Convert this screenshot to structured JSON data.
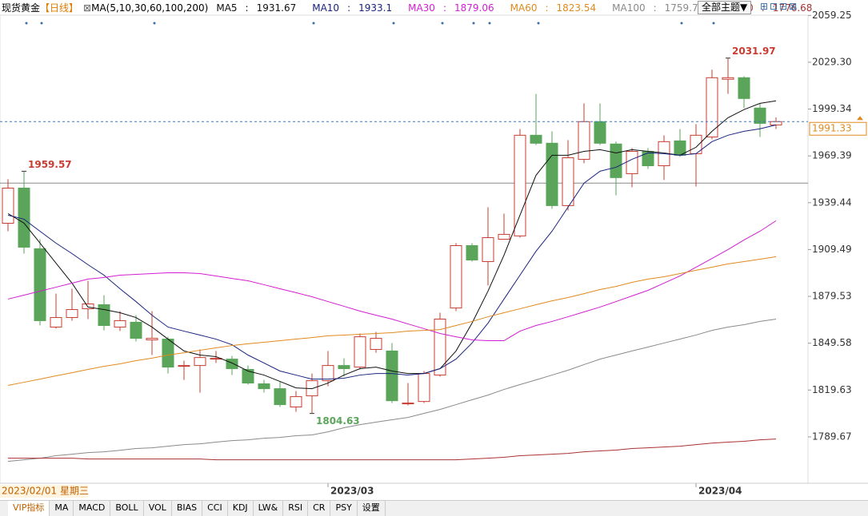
{
  "header": {
    "instrument": "现货黄金",
    "period": "【日线】",
    "indicator": "MA(5,10,30,60,100,200)",
    "legend_separator": ":",
    "theme_button": "全部主题▼"
  },
  "chart_data": {
    "type": "candlestick",
    "categories": [
      null,
      null,
      null,
      null,
      null,
      null,
      null,
      null,
      null,
      null,
      null,
      null,
      null,
      null,
      null,
      null,
      null,
      null,
      null,
      null,
      "2023/03",
      null,
      null,
      null,
      null,
      null,
      null,
      null,
      null,
      null,
      null,
      null,
      null,
      null,
      null,
      null,
      null,
      null,
      null,
      null,
      null,
      null,
      null,
      "2023/04",
      null,
      null,
      null,
      null,
      null
    ],
    "cursor_date": "2023/02/01 星期三",
    "open": [
      1926.3,
      1948.8,
      1910.0,
      1859.9,
      1866.0,
      1871.6,
      1874.2,
      1859.9,
      1863.0,
      1851.7,
      1852.2,
      1834.8,
      1835.3,
      1839.4,
      1839.4,
      1832.8,
      1823.6,
      1820.5,
      1808.8,
      1815.9,
      1825.6,
      1835.3,
      1834.3,
      1845.6,
      1844.6,
      1810.8,
      1812.3,
      1829.2,
      1872.1,
      1912.0,
      1901.8,
      1916.1,
      1918.2,
      1982.6,
      1977.5,
      1937.6,
      1967.2,
      1991.3,
      1977.0,
      1958.0,
      1972.3,
      1963.1,
      1979.0,
      1970.8,
      1981.5,
      2018.4,
      2019.4,
      2000.0,
      1989.2
    ],
    "high": [
      1954.5,
      1959.57,
      1916.1,
      1881.3,
      1884.4,
      1889.5,
      1880.3,
      1870.1,
      1867.5,
      1870.1,
      1853.7,
      1838.4,
      1845.6,
      1844.6,
      1841.5,
      1835.3,
      1826.1,
      1825.1,
      1819.0,
      1830.2,
      1844.6,
      1839.9,
      1855.8,
      1856.8,
      1849.7,
      1824.1,
      1831.8,
      1869.1,
      1913.6,
      1913.6,
      1936.6,
      1932.5,
      1986.6,
      2009.1,
      1985.1,
      1979.5,
      2003.0,
      2003.0,
      1978.5,
      1974.4,
      1974.4,
      1982.6,
      1986.6,
      1989.7,
      2024.5,
      2031.97,
      2020.4,
      2003.0,
      1994.0
    ],
    "low": [
      1921.2,
      1906.9,
      1861.0,
      1858.9,
      1864.0,
      1865.0,
      1857.8,
      1857.3,
      1850.7,
      1842.0,
      1830.2,
      1826.1,
      1818.0,
      1836.9,
      1829.2,
      1823.1,
      1818.0,
      1808.8,
      1805.7,
      1804.63,
      1822.1,
      1828.2,
      1832.8,
      1843.5,
      1811.3,
      1809.8,
      1811.3,
      1828.2,
      1870.1,
      1901.8,
      1886.5,
      1916.1,
      1917.1,
      1976.4,
      1935.5,
      1934.5,
      1964.7,
      1976.4,
      1944.2,
      1949.3,
      1961.1,
      1954.0,
      1968.8,
      1949.8,
      1980.0,
      2009.1,
      2000.0,
      1981.5,
      1986.6
    ],
    "close": [
      1948.8,
      1911.0,
      1864.0,
      1866.0,
      1871.1,
      1874.7,
      1860.9,
      1864.0,
      1852.7,
      1852.7,
      1834.3,
      1835.3,
      1840.4,
      1839.9,
      1833.3,
      1824.1,
      1820.5,
      1810.3,
      1815.4,
      1825.6,
      1835.3,
      1833.3,
      1853.7,
      1852.7,
      1812.8,
      1811.3,
      1830.2,
      1865.0,
      1912.0,
      1902.8,
      1917.1,
      1919.2,
      1982.6,
      1977.5,
      1937.6,
      1968.2,
      1991.3,
      1977.5,
      1955.5,
      1972.3,
      1963.1,
      1978.5,
      1969.8,
      1982.6,
      2019.4,
      2019.4,
      2006.1,
      1990.2,
      1991.33
    ],
    "up_color": "#c83c32",
    "down_color": "#5aa55a",
    "series": [
      {
        "name": "MA5",
        "color": "#111111",
        "legend_value": 1931.67,
        "values": [
          1932.5,
          1926.4,
          1913.6,
          1900.8,
          1888.0,
          1872.7,
          1871.1,
          1869.1,
          1866.0,
          1859.9,
          1852.2,
          1844.6,
          1842.0,
          1841.0,
          1836.9,
          1831.8,
          1829.2,
          1825.1,
          1821.0,
          1820.5,
          1824.1,
          1829.2,
          1833.3,
          1834.3,
          1831.8,
          1830.2,
          1830.2,
          1833.3,
          1844.6,
          1862.4,
          1882.9,
          1905.9,
          1931.5,
          1957.0,
          1969.8,
          1969.8,
          1972.3,
          1973.4,
          1971.3,
          1973.4,
          1972.3,
          1971.3,
          1969.8,
          1974.9,
          1985.1,
          1993.8,
          1999.0,
          2003.0,
          2004.6
        ]
      },
      {
        "name": "MA10",
        "color": "#1a237e",
        "legend_value": 1933.1,
        "values": [
          1931.5,
          1928.9,
          1921.2,
          1913.6,
          1906.9,
          1899.8,
          1893.1,
          1884.4,
          1876.2,
          1867.5,
          1859.9,
          1857.3,
          1854.8,
          1852.2,
          1848.6,
          1842.0,
          1836.9,
          1831.8,
          1829.2,
          1826.6,
          1826.6,
          1827.2,
          1829.2,
          1830.2,
          1830.2,
          1829.2,
          1830.2,
          1833.3,
          1839.4,
          1849.7,
          1862.4,
          1877.8,
          1893.1,
          1908.4,
          1921.2,
          1936.6,
          1951.9,
          1959.6,
          1962.1,
          1967.2,
          1971.3,
          1970.8,
          1969.8,
          1970.8,
          1978.5,
          1982.6,
          1985.1,
          1986.7,
          1989.2
        ]
      },
      {
        "name": "MA30",
        "color": "#d21ed2",
        "legend_value": 1879.06,
        "values": [
          1877.8,
          1880.3,
          1882.9,
          1885.4,
          1888.0,
          1890.6,
          1891.6,
          1893.1,
          1893.6,
          1894.1,
          1894.6,
          1894.6,
          1894.1,
          1892.6,
          1891.0,
          1889.5,
          1887.0,
          1884.4,
          1881.9,
          1879.3,
          1876.2,
          1873.2,
          1870.1,
          1867.5,
          1865.0,
          1861.9,
          1858.9,
          1855.8,
          1853.7,
          1851.7,
          1851.2,
          1851.2,
          1857.3,
          1860.9,
          1863.5,
          1866.5,
          1869.6,
          1872.7,
          1876.2,
          1879.8,
          1883.4,
          1888.0,
          1892.6,
          1898.2,
          1903.8,
          1909.5,
          1915.6,
          1921.2,
          1927.9
        ]
      },
      {
        "name": "MA60",
        "color": "#e08a1e",
        "legend_value": 1823.54,
        "values": [
          1822.6,
          1824.6,
          1826.6,
          1828.7,
          1830.7,
          1832.8,
          1834.8,
          1836.4,
          1838.4,
          1840.0,
          1842.0,
          1843.5,
          1845.1,
          1846.6,
          1848.1,
          1849.2,
          1850.2,
          1851.2,
          1852.2,
          1853.2,
          1854.3,
          1854.8,
          1855.3,
          1855.8,
          1856.3,
          1857.3,
          1857.8,
          1858.3,
          1860.9,
          1863.5,
          1866.5,
          1869.1,
          1871.6,
          1874.2,
          1876.7,
          1878.8,
          1881.3,
          1883.9,
          1885.9,
          1888.5,
          1890.6,
          1892.1,
          1894.1,
          1896.2,
          1898.2,
          1900.3,
          1901.8,
          1903.3,
          1904.9
        ]
      },
      {
        "name": "MA100",
        "color": "#8a8a8a",
        "legend_value": 1759.72,
        "values": [
          1774.0,
          1775.0,
          1776.0,
          1777.6,
          1778.6,
          1779.6,
          1780.1,
          1781.1,
          1782.2,
          1782.7,
          1783.7,
          1784.7,
          1785.2,
          1786.3,
          1787.3,
          1787.8,
          1788.8,
          1789.3,
          1790.4,
          1790.9,
          1792.9,
          1795.5,
          1797.5,
          1799.1,
          1800.6,
          1802.1,
          1804.7,
          1807.2,
          1810.3,
          1813.4,
          1816.4,
          1820.0,
          1823.1,
          1826.1,
          1829.2,
          1832.3,
          1835.9,
          1839.4,
          1842.0,
          1844.6,
          1847.1,
          1849.7,
          1852.2,
          1854.8,
          1857.8,
          1859.9,
          1861.4,
          1863.5,
          1865.0
        ]
      },
      {
        "name": "MA200",
        "color": "#a83232",
        "legend_value": 1776.68,
        "values": [
          1776.0,
          1776.0,
          1776.0,
          1776.0,
          1776.0,
          1775.5,
          1775.5,
          1775.5,
          1775.5,
          1775.5,
          1775.5,
          1775.5,
          1775.5,
          1775.0,
          1775.0,
          1775.0,
          1775.0,
          1775.0,
          1775.0,
          1775.0,
          1775.0,
          1775.0,
          1775.0,
          1775.0,
          1775.0,
          1775.0,
          1775.0,
          1775.0,
          1775.0,
          1775.5,
          1776.0,
          1776.6,
          1777.6,
          1778.1,
          1778.6,
          1779.1,
          1780.1,
          1780.7,
          1781.2,
          1782.2,
          1782.7,
          1783.2,
          1783.7,
          1784.7,
          1785.7,
          1786.3,
          1786.8,
          1787.8,
          1788.3
        ]
      }
    ],
    "reference_line": 1952.0,
    "ylim": [
      1760,
      2064
    ],
    "yticks": [
      1789.67,
      1819.63,
      1849.58,
      1879.53,
      1909.49,
      1939.44,
      1969.39,
      1999.34,
      {
        "value": 2029.3,
        "label": "2029.30"
      },
      2059.25
    ]
  },
  "tabs": [
    "VIP指标",
    "MA",
    "MACD",
    "BOLL",
    "VOL",
    "BIAS",
    "CCI",
    "KDJ",
    "LW&",
    "RSI",
    "CR",
    "PSY",
    "设置"
  ]
}
